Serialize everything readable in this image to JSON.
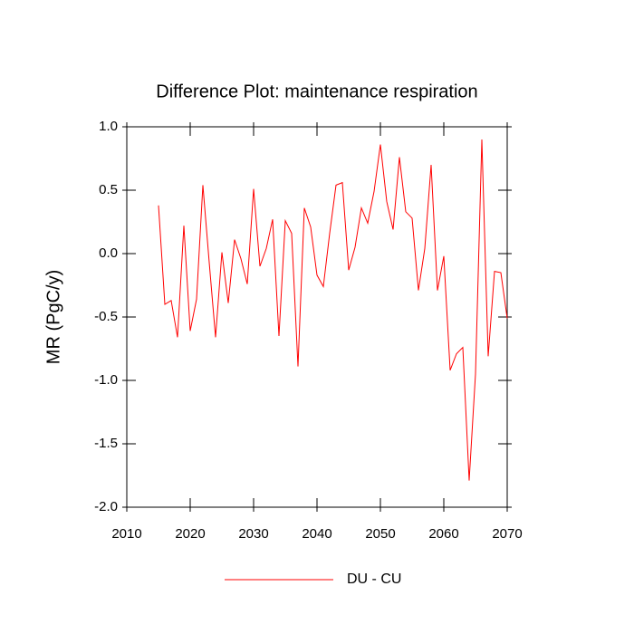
{
  "chart_data": {
    "type": "line",
    "title": "Difference Plot: maintenance respiration",
    "y_label": "MR  (PgC/y)",
    "x": [
      2015,
      2016,
      2017,
      2018,
      2019,
      2020,
      2021,
      2022,
      2023,
      2024,
      2025,
      2026,
      2027,
      2028,
      2029,
      2030,
      2031,
      2032,
      2033,
      2034,
      2035,
      2036,
      2037,
      2038,
      2039,
      2040,
      2041,
      2042,
      2043,
      2044,
      2045,
      2046,
      2047,
      2048,
      2049,
      2050,
      2051,
      2052,
      2053,
      2054,
      2055,
      2056,
      2057,
      2058,
      2059,
      2060,
      2061,
      2062,
      2063,
      2064,
      2065,
      2066,
      2067,
      2068,
      2069,
      2070
    ],
    "series": [
      {
        "name": "DU - CU",
        "color": "#ff0000",
        "values": [
          0.38,
          -0.4,
          -0.37,
          -0.66,
          0.22,
          -0.61,
          -0.36,
          0.54,
          -0.07,
          -0.66,
          0.01,
          -0.39,
          0.11,
          -0.04,
          -0.24,
          0.51,
          -0.1,
          0.04,
          0.27,
          -0.65,
          0.26,
          0.16,
          -0.89,
          0.36,
          0.21,
          -0.17,
          -0.26,
          0.16,
          0.54,
          0.56,
          -0.13,
          0.05,
          0.36,
          0.24,
          0.49,
          0.86,
          0.41,
          0.19,
          0.76,
          0.33,
          0.28,
          -0.29,
          0.04,
          0.7,
          -0.29,
          -0.02,
          -0.92,
          -0.79,
          -0.74,
          -1.79,
          -0.95,
          0.9,
          -0.81,
          -0.14,
          -0.15,
          -0.51
        ]
      }
    ],
    "xlim": [
      2010,
      2070
    ],
    "xticks": [
      2010,
      2020,
      2030,
      2040,
      2050,
      2060,
      2070
    ],
    "ylim": [
      -2,
      1
    ],
    "yticks": [
      {
        "value": 1,
        "label": "1.0"
      },
      {
        "value": 0.5,
        "label": "0.5"
      },
      {
        "value": 0,
        "label": "0.0"
      },
      {
        "value": -0.5,
        "label": "-0.5"
      },
      {
        "value": -1,
        "label": "-1.0"
      },
      {
        "value": -1.5,
        "label": "-1.5"
      },
      {
        "value": -2,
        "label": "-2.0"
      }
    ],
    "legend": "bottom"
  }
}
